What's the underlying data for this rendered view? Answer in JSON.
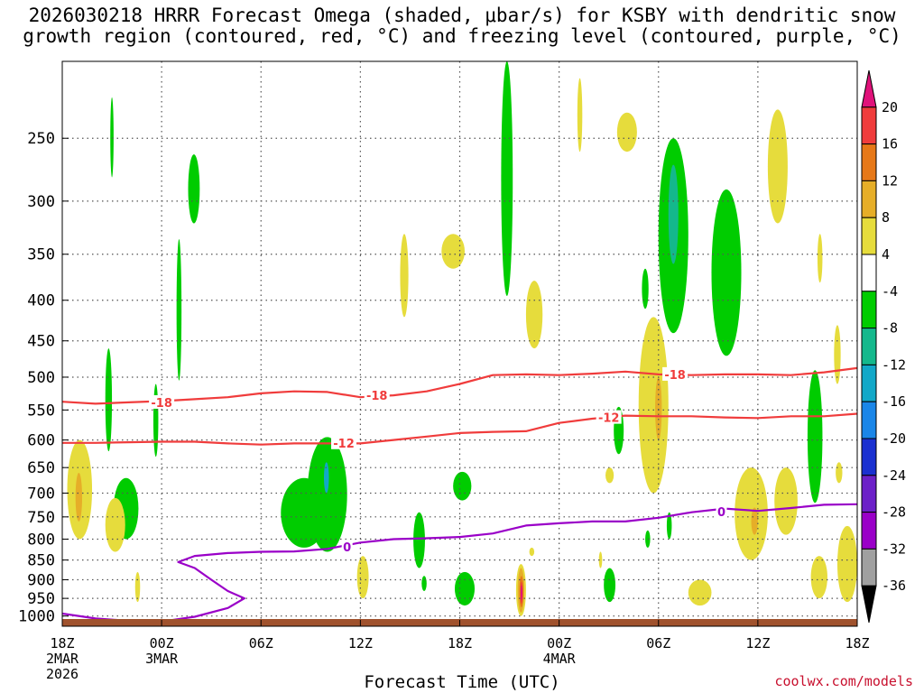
{
  "chart_data": {
    "type": "heatmap",
    "title": {
      "line1": "2026030218 HRRR Forecast Omega (shaded, μbar/s) for KSBY with dendritic snow",
      "line2": "growth region (contoured, red, °C) and freezing level (contoured, purple, °C)"
    },
    "xlabel": "Forecast Time (UTC)",
    "credit": "coolwx.com/models",
    "xlim": [
      0,
      24
    ],
    "ylim": [
      1030,
      200
    ],
    "yscale": "log",
    "y_ticks": [
      250,
      300,
      350,
      400,
      450,
      500,
      550,
      600,
      650,
      700,
      750,
      800,
      850,
      900,
      950,
      1000
    ],
    "x_ticks": [
      {
        "x": 0,
        "lines": [
          "18Z",
          "2MAR",
          "2026"
        ]
      },
      {
        "x": 3,
        "lines": [
          "00Z",
          "3MAR"
        ]
      },
      {
        "x": 6,
        "lines": [
          "06Z"
        ]
      },
      {
        "x": 9,
        "lines": [
          "12Z"
        ]
      },
      {
        "x": 12,
        "lines": [
          "18Z"
        ]
      },
      {
        "x": 15,
        "lines": [
          "00Z",
          "4MAR"
        ]
      },
      {
        "x": 18,
        "lines": [
          "06Z"
        ]
      },
      {
        "x": 21,
        "lines": [
          "12Z"
        ]
      },
      {
        "x": 24,
        "lines": [
          "18Z"
        ]
      }
    ],
    "grid": true,
    "colorbar": {
      "levels": [
        -36,
        -32,
        -28,
        -24,
        -20,
        -16,
        -12,
        -8,
        -4,
        4,
        8,
        12,
        16,
        20
      ],
      "colors": [
        "#000000",
        "#a0a0a0",
        "#9a00c8",
        "#6c20c8",
        "#1a30d0",
        "#1a86e8",
        "#12a8c8",
        "#14b88c",
        "#00cc00",
        "#ffffff",
        "#e6dc3c",
        "#e6ae28",
        "#e67818",
        "#f03c3c",
        "#e0127a"
      ],
      "colors_note": "bands from below -36 up to above 20"
    },
    "colors": {
      "green": "#00cc00",
      "teal": "#14c0a0",
      "cyan": "#18b8c8",
      "yellow": "#e6dc3c",
      "gold": "#e6ae28",
      "orange": "#e67818",
      "red": "#f03c3c",
      "magenta": "#e0127a",
      "contour_red": "#f03c3c",
      "contour_purple": "#9a00c8",
      "ground": "#a0522d"
    },
    "contours": [
      {
        "label": "-18",
        "color": "red",
        "points": [
          [
            0,
            537
          ],
          [
            1,
            540
          ],
          [
            2,
            538
          ],
          [
            3,
            536
          ],
          [
            4,
            533
          ],
          [
            5,
            530
          ],
          [
            6,
            524
          ],
          [
            7,
            521
          ],
          [
            8,
            522
          ],
          [
            9,
            530
          ],
          [
            10,
            527
          ],
          [
            11,
            521
          ],
          [
            12,
            510
          ],
          [
            13,
            497
          ],
          [
            14,
            496
          ],
          [
            15,
            497
          ],
          [
            16,
            495
          ],
          [
            17,
            492
          ],
          [
            18,
            496
          ],
          [
            19,
            497
          ],
          [
            20,
            496
          ],
          [
            21,
            496
          ],
          [
            22,
            497
          ],
          [
            23,
            493
          ],
          [
            24,
            487
          ]
        ],
        "label_at": [
          [
            3,
            538
          ],
          [
            9.5,
            527
          ],
          [
            18.5,
            496
          ]
        ]
      },
      {
        "label": "-12",
        "color": "red",
        "points": [
          [
            0,
            605
          ],
          [
            1,
            605
          ],
          [
            2,
            604
          ],
          [
            3,
            603
          ],
          [
            4,
            603
          ],
          [
            5,
            606
          ],
          [
            6,
            608
          ],
          [
            7,
            606
          ],
          [
            8,
            606
          ],
          [
            9,
            606
          ],
          [
            10,
            600
          ],
          [
            11,
            594
          ],
          [
            12,
            588
          ],
          [
            13,
            586
          ],
          [
            14,
            585
          ],
          [
            15,
            571
          ],
          [
            16,
            564
          ],
          [
            17,
            559
          ],
          [
            18,
            560
          ],
          [
            19,
            560
          ],
          [
            20,
            562
          ],
          [
            21,
            563
          ],
          [
            22,
            560
          ],
          [
            23,
            560
          ],
          [
            24,
            556
          ]
        ],
        "label_at": [
          [
            8.5,
            605
          ],
          [
            16.5,
            562
          ]
        ]
      },
      {
        "label": "0",
        "color": "purple",
        "points": [
          [
            0,
            993
          ],
          [
            1,
            1007
          ],
          [
            2,
            1014
          ],
          [
            3,
            1016
          ],
          [
            4,
            1002
          ],
          [
            5,
            977
          ],
          [
            5.5,
            950
          ],
          [
            5,
            930
          ],
          [
            4.5,
            900
          ],
          [
            4,
            870
          ],
          [
            3.5,
            855
          ],
          [
            4,
            840
          ],
          [
            5,
            833
          ],
          [
            6,
            830
          ],
          [
            7,
            829
          ],
          [
            8,
            823
          ],
          [
            9,
            808
          ],
          [
            10,
            800
          ],
          [
            11,
            798
          ],
          [
            12,
            795
          ],
          [
            13,
            787
          ],
          [
            14,
            769
          ],
          [
            15,
            764
          ],
          [
            16,
            760
          ],
          [
            17,
            760
          ],
          [
            18,
            752
          ],
          [
            19,
            740
          ],
          [
            20,
            732
          ],
          [
            21,
            737
          ],
          [
            22,
            731
          ],
          [
            23,
            724
          ],
          [
            24,
            723
          ]
        ],
        "label_at": [
          [
            8.6,
            818
          ],
          [
            19.9,
            739
          ]
        ]
      }
    ],
    "shaded_regions": [
      {
        "value": -6,
        "x": [
          1.45,
          1.55
        ],
        "y": [
          222,
          280
        ]
      },
      {
        "value": -6,
        "x": [
          3.8,
          4.15
        ],
        "y": [
          262,
          320
        ]
      },
      {
        "value": -6,
        "x": [
          3.45,
          3.6
        ],
        "y": [
          335,
          505
        ]
      },
      {
        "value": -6,
        "x": [
          1.3,
          1.5
        ],
        "y": [
          460,
          620
        ]
      },
      {
        "value": -6,
        "x": [
          2.75,
          2.9
        ],
        "y": [
          510,
          630
        ]
      },
      {
        "value": -6,
        "x": [
          1.55,
          2.3
        ],
        "y": [
          670,
          800
        ]
      },
      {
        "value": -6,
        "x": [
          6.6,
          8.0
        ],
        "y": [
          670,
          820
        ]
      },
      {
        "value": -6,
        "x": [
          7.4,
          8.6
        ],
        "y": [
          595,
          830
        ]
      },
      {
        "value": -13,
        "x": [
          7.9,
          8.05
        ],
        "y": [
          640,
          700
        ]
      },
      {
        "value": -6,
        "x": [
          10.6,
          10.95
        ],
        "y": [
          740,
          870
        ]
      },
      {
        "value": -6,
        "x": [
          11.8,
          12.35
        ],
        "y": [
          658,
          715
        ]
      },
      {
        "value": -6,
        "x": [
          11.85,
          12.45
        ],
        "y": [
          880,
          970
        ]
      },
      {
        "value": -6,
        "x": [
          10.85,
          11.0
        ],
        "y": [
          890,
          930
        ]
      },
      {
        "value": -6,
        "x": [
          13.25,
          13.6
        ],
        "y": [
          200,
          395
        ]
      },
      {
        "value": -6,
        "x": [
          16.65,
          16.95
        ],
        "y": [
          545,
          625
        ]
      },
      {
        "value": -6,
        "x": [
          16.35,
          16.7
        ],
        "y": [
          870,
          960
        ]
      },
      {
        "value": -6,
        "x": [
          17.5,
          17.7
        ],
        "y": [
          365,
          410
        ]
      },
      {
        "value": -6,
        "x": [
          18.0,
          18.9
        ],
        "y": [
          250,
          440
        ]
      },
      {
        "value": -11,
        "x": [
          18.3,
          18.6
        ],
        "y": [
          270,
          360
        ]
      },
      {
        "value": -6,
        "x": [
          19.6,
          20.5
        ],
        "y": [
          290,
          470
        ]
      },
      {
        "value": -6,
        "x": [
          22.5,
          22.95
        ],
        "y": [
          490,
          720
        ]
      },
      {
        "value": -6,
        "x": [
          17.6,
          17.75
        ],
        "y": [
          780,
          820
        ]
      },
      {
        "value": -6,
        "x": [
          18.25,
          18.4
        ],
        "y": [
          740,
          800
        ]
      },
      {
        "value": 5,
        "x": [
          0.15,
          0.9
        ],
        "y": [
          600,
          800
        ]
      },
      {
        "value": 9,
        "x": [
          0.4,
          0.6
        ],
        "y": [
          660,
          760
        ]
      },
      {
        "value": 5,
        "x": [
          1.3,
          1.9
        ],
        "y": [
          710,
          830
        ]
      },
      {
        "value": 5,
        "x": [
          2.2,
          2.35
        ],
        "y": [
          880,
          960
        ]
      },
      {
        "value": 5,
        "x": [
          8.9,
          9.25
        ],
        "y": [
          840,
          950
        ]
      },
      {
        "value": 5,
        "x": [
          10.2,
          10.45
        ],
        "y": [
          330,
          420
        ]
      },
      {
        "value": 5,
        "x": [
          11.45,
          12.15
        ],
        "y": [
          330,
          365
        ]
      },
      {
        "value": 5,
        "x": [
          14.0,
          14.5
        ],
        "y": [
          378,
          460
        ]
      },
      {
        "value": 5,
        "x": [
          15.55,
          15.7
        ],
        "y": [
          210,
          260
        ]
      },
      {
        "value": 5,
        "x": [
          16.75,
          17.35
        ],
        "y": [
          232,
          260
        ]
      },
      {
        "value": 5,
        "x": [
          16.4,
          16.65
        ],
        "y": [
          650,
          680
        ]
      },
      {
        "value": 5,
        "x": [
          17.4,
          18.3
        ],
        "y": [
          420,
          700
        ]
      },
      {
        "value": 9,
        "x": [
          17.9,
          18.1
        ],
        "y": [
          500,
          600
        ]
      },
      {
        "value": 5,
        "x": [
          18.9,
          19.6
        ],
        "y": [
          900,
          970
        ]
      },
      {
        "value": 5,
        "x": [
          20.3,
          21.3
        ],
        "y": [
          650,
          850
        ]
      },
      {
        "value": 9,
        "x": [
          20.8,
          21.0
        ],
        "y": [
          730,
          790
        ]
      },
      {
        "value": 5,
        "x": [
          21.5,
          22.2
        ],
        "y": [
          650,
          790
        ]
      },
      {
        "value": 5,
        "x": [
          21.3,
          21.9
        ],
        "y": [
          230,
          320
        ]
      },
      {
        "value": 5,
        "x": [
          22.8,
          22.95
        ],
        "y": [
          330,
          380
        ]
      },
      {
        "value": 5,
        "x": [
          23.3,
          23.5
        ],
        "y": [
          430,
          510
        ]
      },
      {
        "value": 5,
        "x": [
          23.35,
          23.55
        ],
        "y": [
          640,
          680
        ]
      },
      {
        "value": 5,
        "x": [
          22.6,
          23.1
        ],
        "y": [
          840,
          950
        ]
      },
      {
        "value": 5,
        "x": [
          23.4,
          24.0
        ],
        "y": [
          770,
          960
        ]
      },
      {
        "value": 5,
        "x": [
          13.7,
          14.0
        ],
        "y": [
          860,
          1000
        ]
      },
      {
        "value": 9,
        "x": [
          13.75,
          13.95
        ],
        "y": [
          870,
          990
        ]
      },
      {
        "value": 13,
        "x": [
          13.8,
          13.92
        ],
        "y": [
          890,
          975
        ]
      },
      {
        "value": 17,
        "x": [
          13.83,
          13.9
        ],
        "y": [
          905,
          965
        ]
      },
      {
        "value": 22,
        "x": [
          13.84,
          13.89
        ],
        "y": [
          915,
          955
        ]
      },
      {
        "value": 5,
        "x": [
          14.1,
          14.25
        ],
        "y": [
          820,
          840
        ]
      },
      {
        "value": 5,
        "x": [
          16.2,
          16.3
        ],
        "y": [
          830,
          870
        ]
      }
    ]
  }
}
